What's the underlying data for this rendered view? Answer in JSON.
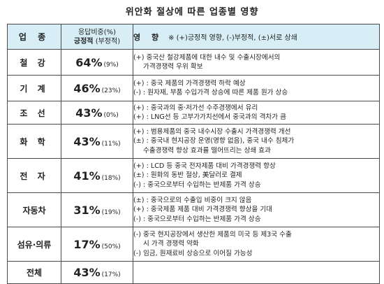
{
  "title": "위안화 절상에 따른 업종별 영향",
  "header": {
    "industry": "업 종",
    "ratio_line1": "응답비중(%)",
    "ratio_positive": "긍정적",
    "ratio_negative": "(부정적)",
    "impact_label": "영 향",
    "impact_legend": "※ (+)긍정적 영향, (-)부정적, (±)서로 상쇄"
  },
  "rows": [
    {
      "industry": "철 강",
      "positive": "64%",
      "negative": "(9%)",
      "lines": [
        "(+) 중국산 철강제품에 대한 내수 및 수출시장에서의",
        "가격경쟁력 우위 확보"
      ]
    },
    {
      "industry": "기 계",
      "positive": "46%",
      "negative": "(23%)",
      "lines": [
        "(+) : 중국 제품의 가격경쟁력 하락 예상",
        "(-) : 원자재, 부품 수입가격 상승에 따른 제품 원가 상승"
      ]
    },
    {
      "industry": "조 선",
      "positive": "43%",
      "negative": "(0%)",
      "lines": [
        "(+) : 중국과의 중·저가선 수주경쟁에서 유리",
        "(+) : LNG선 등 고부가가치선에서 중국과의 격차가 큼"
      ]
    },
    {
      "industry": "화 학",
      "positive": "43%",
      "negative": "(11%)",
      "lines": [
        "(+) : 범용제품의 중국 내수시장 수출시 가격경쟁력 개선",
        "(±) : 중국내 현지공장 운영(영향 없음), 중국 내수 침체가",
        "수출경쟁력 향상 효과를 떨어뜨리는 상쇄 효과"
      ]
    },
    {
      "industry": "전 자",
      "positive": "41%",
      "negative": "(18%)",
      "lines": [
        "(+) : LCD 등 중국 전자제품 대비 가격경쟁력 향상",
        "(±) : 원화의 동반 절상, 美달러로 결제",
        "(-) : 중국으로부터 수입하는 반제품 가격 상승"
      ]
    },
    {
      "industry": "자동차",
      "positive": "31%",
      "negative": "(19%)",
      "lines": [
        "(±) : 중국으로의 수출입 비중이 크지 않음",
        "(+) : 중국제품 제품 대비 가격경쟁력 향상을 기대",
        "(-) : 중국으로부터 수입하는 반제품 가격 상승"
      ]
    },
    {
      "industry": "섬유·의류",
      "positive": "17%",
      "negative": "(50%)",
      "lines": [
        "(-) 중국 현지공장에서 생산한 제품의 미국 등 제3국 수출",
        "시 가격 경쟁력 약화",
        "(-) 임금, 원재료비 상승으로 이어질 가능성"
      ]
    },
    {
      "industry": "전체",
      "positive": "43%",
      "negative": "(17%)",
      "lines": []
    }
  ]
}
